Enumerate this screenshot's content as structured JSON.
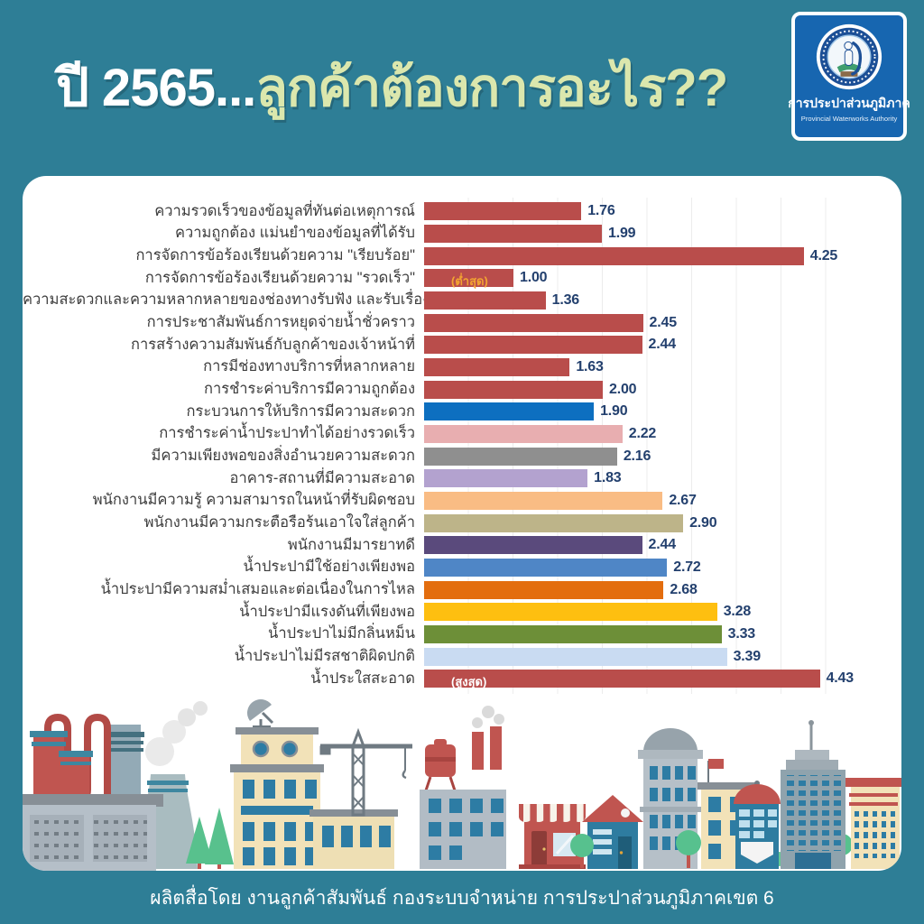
{
  "header": {
    "title_prefix": "ปี 2565...",
    "title_main": "ลูกค้าต้องการอะไร??",
    "logo": {
      "name_th": "การประปาส่วนภูมิภาค",
      "name_en": "Provincial Waterworks Authority"
    }
  },
  "chart_data": {
    "type": "bar",
    "orientation": "horizontal",
    "title": "ปี 2565...ลูกค้าต้องการอะไร??",
    "xlim": [
      0,
      4.7
    ],
    "gridline_step": 0.5,
    "grid": true,
    "categories": [
      "ความรวดเร็วของข้อมูลที่ทันต่อเหตุการณ์",
      "ความถูกต้อง แม่นยำของข้อมูลที่ได้รับ",
      "การจัดการข้อร้องเรียนด้วยความ \"เรียบร้อย\"",
      "การจัดการข้อร้องเรียนด้วยความ \"รวดเร็ว\"",
      "ความสะดวกและความหลากหลายของช่องทางรับฟัง และรับเรื่อง...",
      "การประชาสัมพันธ์การหยุดจ่ายน้ำชั่วคราว",
      "การสร้างความสัมพันธ์กับลูกค้าของเจ้าหน้าที่",
      "การมีช่องทางบริการที่หลากหลาย",
      "การชำระค่าบริการมีความถูกต้อง",
      "กระบวนการให้บริการมีความสะดวก",
      "การชำระค่าน้ำประปาทำได้อย่างรวดเร็ว",
      "มีความเพียงพอของสิ่งอำนวยความสะดวก",
      "อาคาร-สถานที่มีความสะอาด",
      "พนักงานมีความรู้ ความสามารถในหน้าที่รับผิดชอบ",
      "พนักงานมีความกระตือรือร้นเอาใจใส่ลูกค้า",
      "พนักงานมีมารยาทดี",
      "น้ำประปามีใช้อย่างเพียงพอ",
      "น้ำประปามีความสม่ำเสมอและต่อเนื่องในการไหล",
      "น้ำประปามีแรงดันที่เพียงพอ",
      "น้ำประปาไม่มีกลิ่นหม็น",
      "น้ำประปาไม่มีรสชาติผิดปกติ",
      "น้ำประใสสะอาด"
    ],
    "values": [
      1.76,
      1.99,
      4.25,
      1.0,
      1.36,
      2.45,
      2.44,
      1.63,
      2.0,
      1.9,
      2.22,
      2.16,
      1.83,
      2.67,
      2.9,
      2.44,
      2.72,
      2.68,
      3.28,
      3.33,
      3.39,
      4.43
    ],
    "value_labels": [
      "1.76",
      "1.99",
      "4.25",
      "1.00",
      "1.36",
      "2.45",
      "2.44",
      "1.63",
      "2.00",
      "1.90",
      "2.22",
      "2.16",
      "1.83",
      "2.67",
      "2.90",
      "2.44",
      "2.72",
      "2.68",
      "3.28",
      "3.33",
      "3.39",
      "4.43"
    ],
    "colors": [
      "#b94d4b",
      "#b94d4b",
      "#b94d4b",
      "#b94d4b",
      "#b94d4b",
      "#b94d4b",
      "#b94d4b",
      "#b94d4b",
      "#b94d4b",
      "#0d6fc0",
      "#e8aeb0",
      "#8f8f8f",
      "#b3a2cf",
      "#f9bc84",
      "#bdb489",
      "#5a4a7c",
      "#4f86c6",
      "#e36d0e",
      "#febf10",
      "#6d8f38",
      "#c9dbf2",
      "#b94d4b"
    ],
    "annotations": [
      {
        "row": 4,
        "text": "(ต่ำสุด)",
        "color": "#f2a431"
      },
      {
        "row": 22,
        "text": "(สูงสุด)",
        "color": "#ffffff"
      }
    ]
  },
  "footer": {
    "credit": "ผลิตสื่อโดย งานลูกค้าสัมพันธ์ กองระบบจำหน่าย การประปาส่วนภูมิภาคเขต 6"
  },
  "colors": {
    "background": "#2e7e96",
    "card": "#ffffff",
    "title_white": "#ffffff",
    "title_green": "#dbe7ad",
    "value_text": "#23406e",
    "label_text": "#3d3d3d",
    "logo_blue": "#1766b0",
    "bar_red": "#b94d4b"
  }
}
